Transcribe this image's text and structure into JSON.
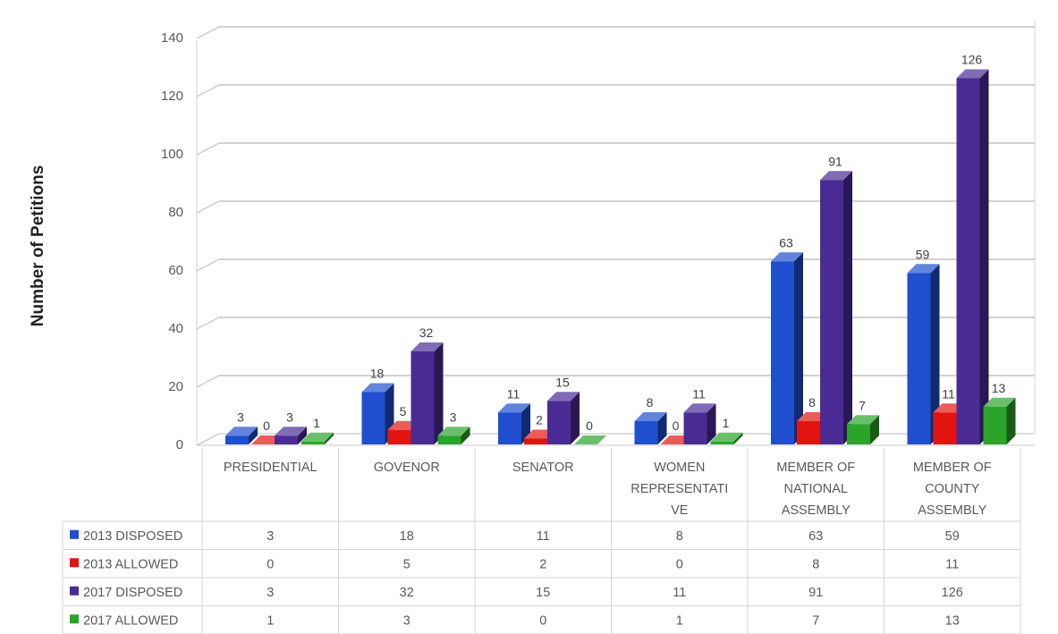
{
  "chart_data": {
    "type": "bar",
    "title": "",
    "xlabel": "",
    "ylabel": "Number of Petitions",
    "ylim": [
      0,
      140
    ],
    "yticks": [
      0,
      20,
      40,
      60,
      80,
      100,
      120,
      140
    ],
    "grid": true,
    "legend": "data-table-left",
    "categories": [
      [
        "PRESIDENTIAL"
      ],
      [
        "GOVENOR"
      ],
      [
        "SENATOR"
      ],
      [
        "WOMEN",
        "REPRESENTATI",
        "VE"
      ],
      [
        "MEMBER OF",
        "NATIONAL",
        "ASSEMBLY"
      ],
      [
        "MEMBER OF",
        "COUNTY",
        "ASSEMBLY"
      ]
    ],
    "series": [
      {
        "name": "2013 DISPOSED",
        "color": "#1f4fcf",
        "values": [
          3,
          18,
          11,
          8,
          63,
          59
        ]
      },
      {
        "name": "2013 ALLOWED",
        "color": "#e3140f",
        "values": [
          0,
          5,
          2,
          0,
          8,
          11
        ]
      },
      {
        "name": "2017 DISPOSED",
        "color": "#4a2b96",
        "values": [
          3,
          32,
          15,
          11,
          91,
          126
        ]
      },
      {
        "name": "2017 ALLOWED",
        "color": "#2aa52a",
        "values": [
          1,
          3,
          0,
          1,
          7,
          13
        ]
      }
    ]
  }
}
